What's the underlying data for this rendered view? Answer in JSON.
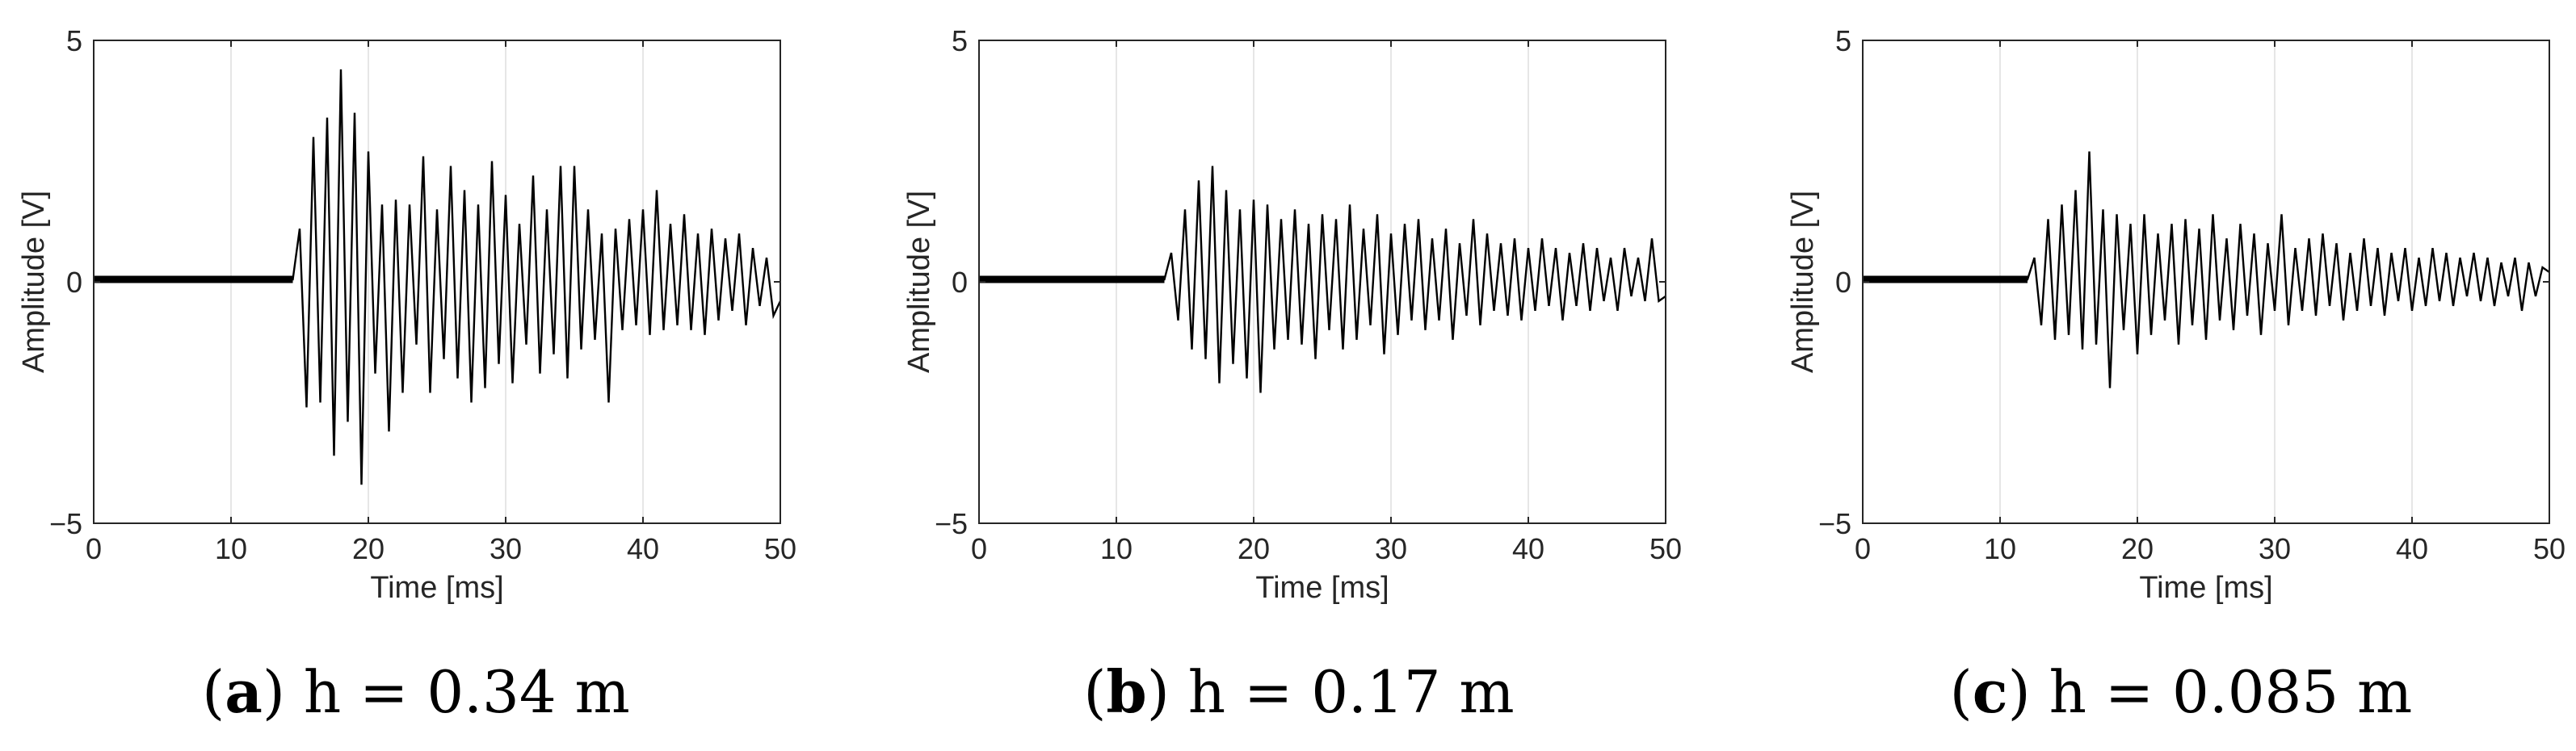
{
  "figure": {
    "panels": [
      {
        "caption": {
          "letter": "a",
          "open": "(",
          "close": ")",
          "text": " h = 0.34 m"
        },
        "chart_data": {
          "type": "line",
          "xlabel": "Time [ms]",
          "ylabel": "Amplitude [V]",
          "xlim": [
            0,
            50
          ],
          "ylim": [
            -5,
            5
          ],
          "xticks": [
            0,
            10,
            20,
            30,
            40,
            50
          ],
          "yticks": [
            -5,
            0,
            5
          ],
          "xtick_labels": [
            "0",
            "10",
            "20",
            "30",
            "40",
            "50"
          ],
          "ytick_labels": [
            "−5",
            "0",
            "5"
          ],
          "grid": "vertical",
          "series": [
            {
              "color": "#000000",
              "x": [
                0,
                14.5,
                15.0,
                15.5,
                16.0,
                16.5,
                17.0,
                17.5,
                18.0,
                18.5,
                19.0,
                19.5,
                20.0,
                20.5,
                21.0,
                21.5,
                22.0,
                22.5,
                23.0,
                23.5,
                24.0,
                24.5,
                25.0,
                25.5,
                26.0,
                26.5,
                27.0,
                27.5,
                28.0,
                28.5,
                29.0,
                29.5,
                30.0,
                30.5,
                31.0,
                31.5,
                32.0,
                32.5,
                33.0,
                33.5,
                34.0,
                34.5,
                35.0,
                35.5,
                36.0,
                36.5,
                37.0,
                37.5,
                38.0,
                38.5,
                39.0,
                39.5,
                40.0,
                40.5,
                41.0,
                41.5,
                42.0,
                42.5,
                43.0,
                43.5,
                44.0,
                44.5,
                45.0,
                45.5,
                46.0,
                46.5,
                47.0,
                47.5,
                48.0,
                48.5,
                49.0,
                49.5,
                50.0
              ],
              "y": [
                0.05,
                0.05,
                1.1,
                -2.6,
                3.0,
                -2.5,
                3.4,
                -3.6,
                4.4,
                -2.9,
                3.5,
                -4.2,
                2.7,
                -1.9,
                1.6,
                -3.1,
                1.7,
                -2.3,
                1.6,
                -1.3,
                2.6,
                -2.3,
                1.5,
                -1.6,
                2.4,
                -2.0,
                1.9,
                -2.5,
                1.6,
                -2.2,
                2.5,
                -1.7,
                1.8,
                -2.1,
                1.2,
                -1.3,
                2.2,
                -1.9,
                1.5,
                -1.5,
                2.4,
                -2.0,
                2.4,
                -1.4,
                1.5,
                -1.2,
                1.0,
                -2.5,
                1.1,
                -1.0,
                1.3,
                -0.9,
                1.5,
                -1.1,
                1.9,
                -1.0,
                1.2,
                -0.9,
                1.4,
                -1.0,
                1.0,
                -1.1,
                1.1,
                -0.8,
                0.9,
                -0.6,
                1.0,
                -0.9,
                0.7,
                -0.5,
                0.5,
                -0.7,
                -0.4
              ]
            }
          ]
        }
      },
      {
        "caption": {
          "letter": "b",
          "open": "(",
          "close": ")",
          "text": " h = 0.17 m"
        },
        "chart_data": {
          "type": "line",
          "xlabel": "Time [ms]",
          "ylabel": "Amplitude [V]",
          "xlim": [
            0,
            50
          ],
          "ylim": [
            -5,
            5
          ],
          "xticks": [
            0,
            10,
            20,
            30,
            40,
            50
          ],
          "yticks": [
            -5,
            0,
            5
          ],
          "xtick_labels": [
            "0",
            "10",
            "20",
            "30",
            "40",
            "50"
          ],
          "ytick_labels": [
            "−5",
            "0",
            "5"
          ],
          "grid": "vertical",
          "series": [
            {
              "color": "#000000",
              "x": [
                0,
                13.5,
                14.0,
                14.5,
                15.0,
                15.5,
                16.0,
                16.5,
                17.0,
                17.5,
                18.0,
                18.5,
                19.0,
                19.5,
                20.0,
                20.5,
                21.0,
                21.5,
                22.0,
                22.5,
                23.0,
                23.5,
                24.0,
                24.5,
                25.0,
                25.5,
                26.0,
                26.5,
                27.0,
                27.5,
                28.0,
                28.5,
                29.0,
                29.5,
                30.0,
                30.5,
                31.0,
                31.5,
                32.0,
                32.5,
                33.0,
                33.5,
                34.0,
                34.5,
                35.0,
                35.5,
                36.0,
                36.5,
                37.0,
                37.5,
                38.0,
                38.5,
                39.0,
                39.5,
                40.0,
                40.5,
                41.0,
                41.5,
                42.0,
                42.5,
                43.0,
                43.5,
                44.0,
                44.5,
                45.0,
                45.5,
                46.0,
                46.5,
                47.0,
                47.5,
                48.0,
                48.5,
                49.0,
                49.5,
                50.0
              ],
              "y": [
                0.05,
                0.05,
                0.6,
                -0.8,
                1.5,
                -1.4,
                2.1,
                -1.6,
                2.4,
                -2.1,
                1.9,
                -1.7,
                1.5,
                -2.0,
                1.7,
                -2.3,
                1.6,
                -1.4,
                1.3,
                -1.2,
                1.5,
                -1.3,
                1.2,
                -1.6,
                1.4,
                -1.0,
                1.3,
                -1.4,
                1.6,
                -1.2,
                1.1,
                -0.9,
                1.4,
                -1.5,
                1.0,
                -1.1,
                1.2,
                -0.8,
                1.3,
                -1.0,
                0.9,
                -0.8,
                1.1,
                -1.2,
                0.8,
                -0.7,
                1.3,
                -0.9,
                1.0,
                -0.6,
                0.8,
                -0.7,
                0.9,
                -0.8,
                0.7,
                -0.6,
                0.9,
                -0.5,
                0.7,
                -0.8,
                0.6,
                -0.5,
                0.8,
                -0.6,
                0.7,
                -0.4,
                0.5,
                -0.6,
                0.7,
                -0.3,
                0.5,
                -0.4,
                0.9,
                -0.4,
                -0.3
              ]
            }
          ]
        }
      },
      {
        "caption": {
          "letter": "c",
          "open": "(",
          "close": ")",
          "text": " h = 0.085 m"
        },
        "chart_data": {
          "type": "line",
          "xlabel": "Time [ms]",
          "ylabel": "Amplitude [V]",
          "xlim": [
            0,
            50
          ],
          "ylim": [
            -5,
            5
          ],
          "xticks": [
            0,
            10,
            20,
            30,
            40,
            50
          ],
          "yticks": [
            -5,
            0,
            5
          ],
          "xtick_labels": [
            "0",
            "10",
            "20",
            "30",
            "40",
            "50"
          ],
          "ytick_labels": [
            "−5",
            "0",
            "5"
          ],
          "grid": "vertical",
          "series": [
            {
              "color": "#000000",
              "x": [
                0,
                12.0,
                12.5,
                13.0,
                13.5,
                14.0,
                14.5,
                15.0,
                15.5,
                16.0,
                16.5,
                17.0,
                17.5,
                18.0,
                18.5,
                19.0,
                19.5,
                20.0,
                20.5,
                21.0,
                21.5,
                22.0,
                22.5,
                23.0,
                23.5,
                24.0,
                24.5,
                25.0,
                25.5,
                26.0,
                26.5,
                27.0,
                27.5,
                28.0,
                28.5,
                29.0,
                29.5,
                30.0,
                30.5,
                31.0,
                31.5,
                32.0,
                32.5,
                33.0,
                33.5,
                34.0,
                34.5,
                35.0,
                35.5,
                36.0,
                36.5,
                37.0,
                37.5,
                38.0,
                38.5,
                39.0,
                39.5,
                40.0,
                40.5,
                41.0,
                41.5,
                42.0,
                42.5,
                43.0,
                43.5,
                44.0,
                44.5,
                45.0,
                45.5,
                46.0,
                46.5,
                47.0,
                47.5,
                48.0,
                48.5,
                49.0,
                49.5,
                50.0
              ],
              "y": [
                0.05,
                0.05,
                0.5,
                -0.9,
                1.3,
                -1.2,
                1.6,
                -1.1,
                1.9,
                -1.4,
                2.7,
                -1.3,
                1.5,
                -2.2,
                1.4,
                -1.0,
                1.2,
                -1.5,
                1.4,
                -1.1,
                1.0,
                -0.8,
                1.2,
                -1.3,
                1.3,
                -0.9,
                1.1,
                -1.2,
                1.4,
                -0.8,
                0.9,
                -1.0,
                1.2,
                -0.7,
                1.0,
                -1.1,
                0.8,
                -0.6,
                1.4,
                -0.9,
                0.7,
                -0.6,
                0.9,
                -0.7,
                1.0,
                -0.5,
                0.8,
                -0.8,
                0.6,
                -0.6,
                0.9,
                -0.5,
                0.7,
                -0.7,
                0.6,
                -0.4,
                0.7,
                -0.6,
                0.5,
                -0.5,
                0.7,
                -0.4,
                0.6,
                -0.5,
                0.5,
                -0.3,
                0.6,
                -0.4,
                0.5,
                -0.5,
                0.4,
                -0.3,
                0.5,
                -0.6,
                0.4,
                -0.3,
                0.3,
                0.2
              ]
            }
          ]
        }
      }
    ]
  }
}
